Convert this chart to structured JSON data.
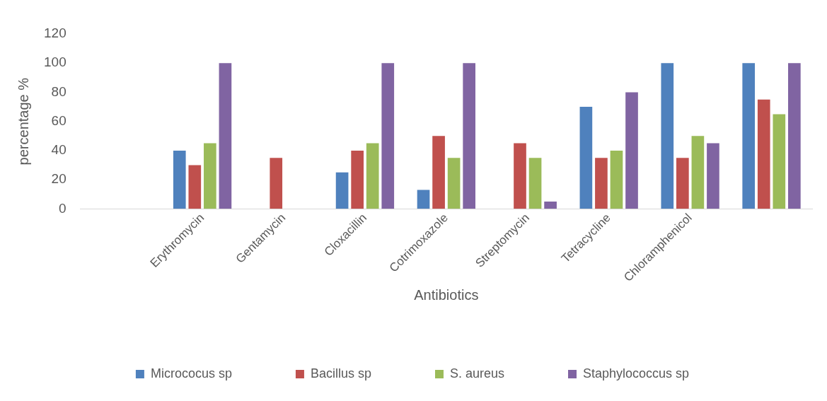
{
  "chart_data": {
    "type": "bar",
    "xlabel": "Antibiotics",
    "ylabel": "percentage %",
    "categories": [
      null,
      "Erythromycin",
      "Gentamycin",
      "Cloxacillin",
      "Cotrimoxazole",
      "Streptomycin",
      "Tetracycline",
      "Chloramphenicol",
      null
    ],
    "series": [
      {
        "name": "Micrococus sp",
        "color": "#4f81bd",
        "values": [
          null,
          40,
          0,
          25,
          13,
          0,
          70,
          100,
          100
        ]
      },
      {
        "name": "Bacillus sp",
        "color": "#c0504d",
        "values": [
          null,
          30,
          35,
          40,
          50,
          45,
          35,
          35,
          75
        ]
      },
      {
        "name": "S. aureus",
        "color": "#9bbb59",
        "values": [
          null,
          45,
          0,
          45,
          35,
          35,
          40,
          50,
          65
        ]
      },
      {
        "name": "Staphylococcus sp",
        "color": "#8064a2",
        "values": [
          null,
          100,
          0,
          100,
          100,
          5,
          80,
          45,
          100
        ]
      }
    ],
    "ylim": [
      0,
      120
    ],
    "yticks": [
      0,
      20,
      40,
      60,
      80,
      100,
      120
    ],
    "grid": false,
    "legend": "bottom"
  }
}
